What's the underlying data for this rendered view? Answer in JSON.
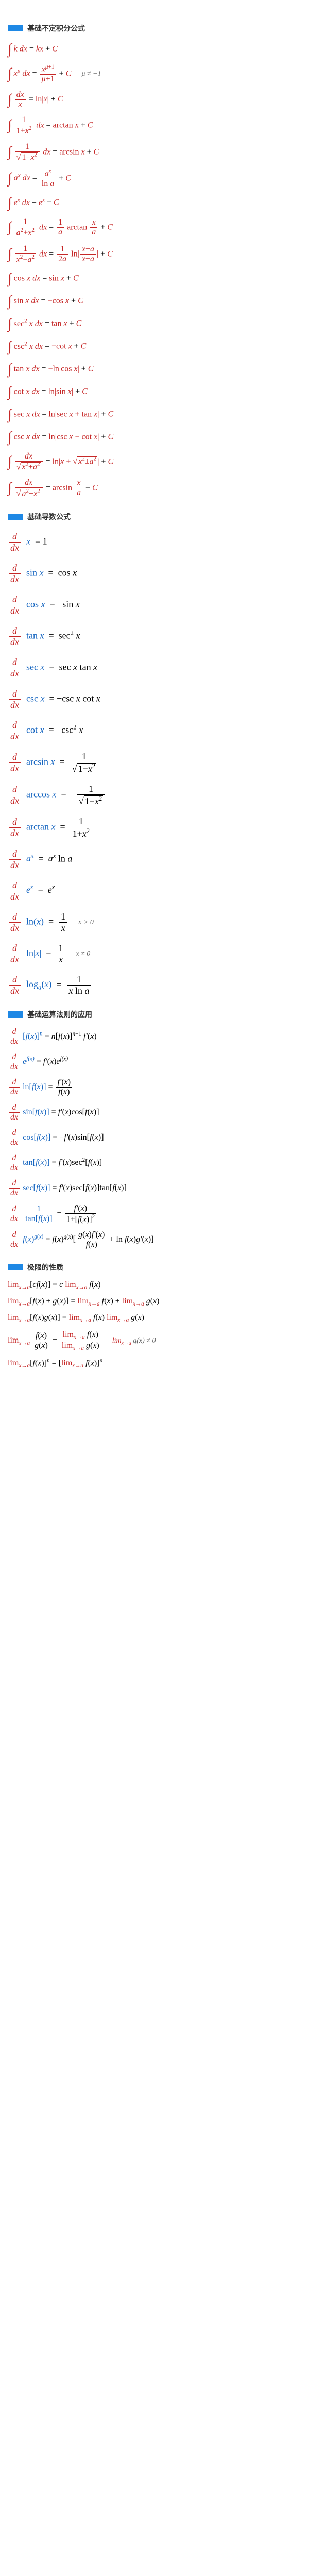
{
  "sections": [
    {
      "title": "基础不定积分公式",
      "formulas": [
        "∫ k dx = kx + C",
        "∫ x^μ dx = x^(μ+1)/(μ+1) + C    μ ≠ −1",
        "∫ dx/x = ln|x| + C",
        "∫ 1/(1+x²) dx = arctan x + C",
        "∫ 1/√(1−x²) dx = arcsin x + C",
        "∫ aˣ dx = aˣ/ln a + C",
        "∫ eˣ dx = eˣ + C",
        "∫ 1/(a²+x²) dx = (1/a) arctan(x/a) + C",
        "∫ 1/(x²−a²) dx = (1/2a) ln|(x−a)/(x+a)| + C",
        "∫ cos x dx = sin x + C",
        "∫ sin x dx = −cos x + C",
        "∫ sec² x dx = tan x + C",
        "∫ csc² x dx = −cot x + C",
        "∫ tan x dx = −ln|cos x| + C",
        "∫ cot x dx = ln|sin x| + C",
        "∫ sec x dx = ln|sec x + tan x| + C",
        "∫ csc x dx = ln|csc x − cot x| + C",
        "∫ dx/√(x²±a²) = ln|x + √(x²±a²)| + C",
        "∫ dx/√(a²−x²) = arcsin(x/a) + C"
      ]
    },
    {
      "title": "基础导数公式",
      "formulas": [
        "d/dx x = 1",
        "d/dx sin x = cos x",
        "d/dx cos x = −sin x",
        "d/dx tan x = sec² x",
        "d/dx sec x = sec x tan x",
        "d/dx csc x = −csc x cot x",
        "d/dx cot x = −csc² x",
        "d/dx arcsin x = 1/√(1−x²)",
        "d/dx arccos x = −1/√(1−x²)",
        "d/dx arctan x = 1/(1+x²)",
        "d/dx aˣ = aˣ ln a",
        "d/dx eˣ = eˣ",
        "d/dx ln(x) = 1/x    x > 0",
        "d/dx ln|x| = 1/x    x ≠ 0",
        "d/dx log_a(x) = 1/(x ln a)"
      ]
    },
    {
      "title": "基础运算法则的应用",
      "formulas": [
        "d/dx [f(x)]ⁿ = n[f(x)]ⁿ⁻¹ f'(x)",
        "d/dx e^f(x) = f'(x)e^f(x)",
        "d/dx ln[f(x)] = f'(x)/f(x)",
        "d/dx sin[f(x)] = f'(x)cos[f(x)]",
        "d/dx cos[f(x)] = −f'(x)sin[f(x)]",
        "d/dx tan[f(x)] = f'(x)sec²[f(x)]",
        "d/dx sec[f(x)] = f'(x)sec[f(x)]tan[f(x)]",
        "d/dx 1/tan[f(x)] = f'(x)/(1+[f(x)]²)",
        "d/dx f(x)^g(x) = f(x)^g(x)[g(x)f'(x)/f(x) + ln f(x)g'(x)]"
      ]
    },
    {
      "title": "极限的性质",
      "formulas": [
        "lim[cf(x)] = c lim f(x)",
        "lim[f(x) ± g(x)] = lim f(x) ± lim g(x)",
        "lim[f(x)g(x)] = lim f(x) lim g(x)",
        "lim f(x)/g(x) = lim f(x)/lim g(x)    lim g(x) ≠ 0",
        "lim[f(x)]ⁿ = [lim f(x)]ⁿ"
      ]
    }
  ],
  "colors": {
    "red": "#c62828",
    "blue": "#1565c0",
    "bar": "#1e88e5"
  }
}
